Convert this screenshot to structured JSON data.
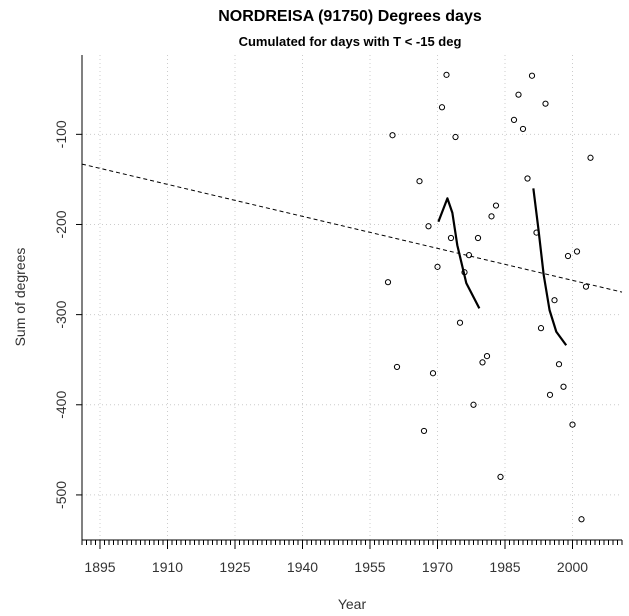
{
  "chart_data": {
    "type": "scatter",
    "title": "NORDREISA (91750) Degrees days",
    "subtitle": "Cumulated for days with T < -15 deg",
    "x_label": "Year",
    "y_label": "Sum of degrees",
    "xlim": [
      1891,
      2011
    ],
    "ylim": [
      -550,
      -12
    ],
    "xticks": [
      1895,
      1910,
      1925,
      1940,
      1955,
      1970,
      1985,
      2000
    ],
    "yticks": [
      -100,
      -200,
      -300,
      -400,
      -500
    ],
    "grid": true,
    "series": [
      {
        "style": "points",
        "color": "#000000",
        "x": [
          1959,
          1960,
          1961,
          1966,
          1967,
          1968,
          1969,
          1970,
          1971,
          1972,
          1973,
          1974,
          1975,
          1976,
          1977,
          1978,
          1979,
          1980,
          1981,
          1982,
          1983,
          1984,
          1987,
          1988,
          1989,
          1990,
          1991,
          1992,
          1993,
          1994,
          1995,
          1996,
          1997,
          1998,
          1999,
          2000,
          2001,
          2002,
          2003,
          2004
        ],
        "values": [
          -264,
          -101,
          -358,
          -152,
          -429,
          -202,
          -365,
          -247,
          -70,
          -34,
          -215,
          -103,
          -309,
          -253,
          -234,
          -400,
          -215,
          -353,
          -346,
          -191,
          -179,
          -480,
          -84,
          -56,
          -94,
          -149,
          -35,
          -209,
          -315,
          -66,
          -389,
          -284,
          -355,
          -380,
          -235,
          -422,
          -230,
          -527,
          -269,
          -126
        ]
      },
      {
        "style": "dashed",
        "color": "#000000",
        "x": [
          1891,
          2011
        ],
        "values": [
          -133,
          -275
        ]
      },
      {
        "style": "solid",
        "color": "#000000",
        "x": [
          1970.2,
          1972.2,
          1973.3,
          1974.4,
          1976.4,
          1979.3
        ],
        "values": [
          -197,
          -171,
          -187,
          -223,
          -265,
          -293
        ]
      },
      {
        "style": "solid",
        "color": "#000000",
        "x": [
          1991.3,
          1992.4,
          1993.6,
          1994.9,
          1996.4,
          1998.6
        ],
        "values": [
          -160,
          -204,
          -256,
          -295,
          -319,
          -334
        ]
      }
    ]
  }
}
